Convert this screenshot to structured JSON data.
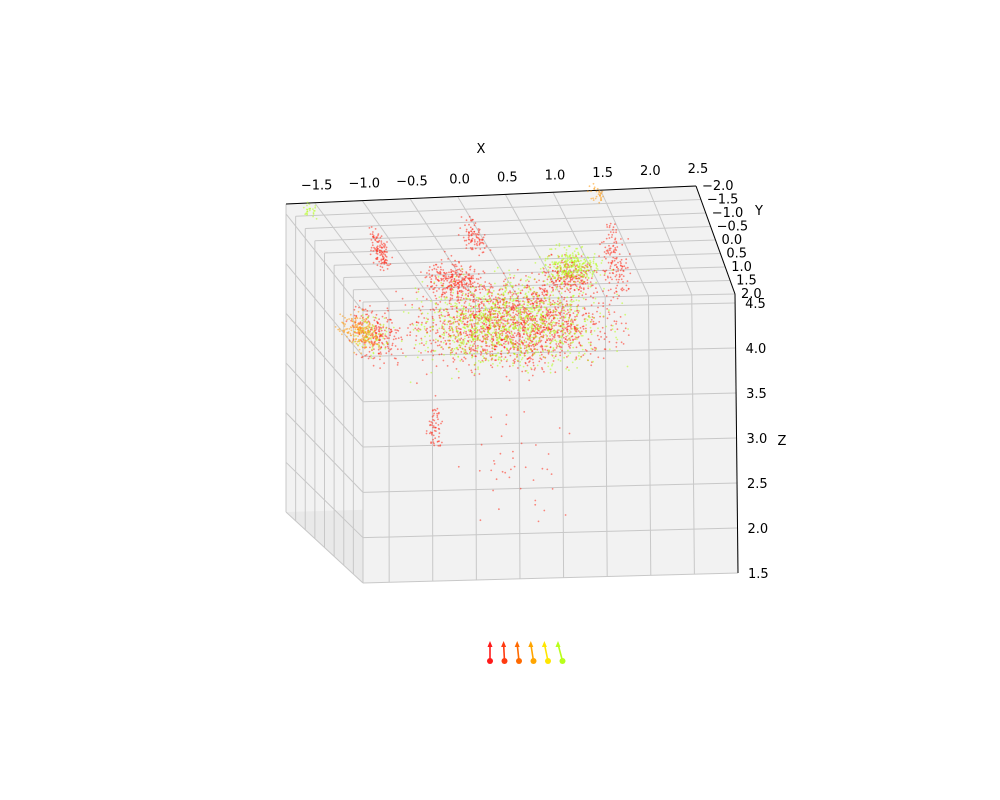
{
  "chart_data": {
    "type": "scatter",
    "projection": "3d",
    "title": "",
    "xlabel": "X",
    "ylabel": "Y",
    "zlabel": "Z",
    "xlim": [
      -1.8,
      2.5
    ],
    "ylim": [
      -2.0,
      2.0
    ],
    "zlim": [
      1.5,
      4.6
    ],
    "x_ticks": [
      "−1.5",
      "−1.0",
      "−0.5",
      "0.0",
      "0.5",
      "1.0",
      "1.5",
      "2.0",
      "2.5"
    ],
    "y_ticks": [
      "−2.0",
      "−1.5",
      "−1.0",
      "−0.5",
      "0.0",
      "0.5",
      "1.0",
      "1.5",
      "2.0"
    ],
    "z_ticks": [
      "1.5",
      "2.0",
      "2.5",
      "3.0",
      "3.5",
      "4.0",
      "4.5"
    ],
    "grid": true,
    "legend": "none",
    "colors": {
      "pane": "#f2f2f2",
      "pane_dark": "#e9e9e9",
      "grid": "#c8c8c8",
      "camera_colors": [
        "#ff1a1a",
        "#ff3a10",
        "#ff6a00",
        "#ffa500",
        "#ffe600",
        "#b8ff1a"
      ]
    },
    "series": [
      {
        "color": "#ff2a1a",
        "clusters": [
          {
            "x": [
              -1.2,
              1.7
            ],
            "y": [
              -0.6,
              0.6
            ],
            "z": [
              3.2,
              4.4
            ],
            "n": 1600
          },
          {
            "x": [
              -1.6,
              -0.9
            ],
            "y": [
              -0.5,
              0.6
            ],
            "z": [
              3.4,
              4.1
            ],
            "n": 220
          },
          {
            "x": [
              -0.8,
              0.1
            ],
            "y": [
              -0.4,
              0.2
            ],
            "z": [
              4.0,
              4.5
            ],
            "n": 260
          },
          {
            "x": [
              0.5,
              1.3
            ],
            "y": [
              -0.4,
              0.2
            ],
            "z": [
              4.0,
              4.5
            ],
            "n": 220
          },
          {
            "x": [
              -1.1,
              -0.9
            ],
            "y": [
              -1.4,
              -0.6
            ],
            "z": [
              4.1,
              4.6
            ],
            "n": 120
          },
          {
            "x": [
              -0.1,
              0.2
            ],
            "y": [
              -1.6,
              -0.8
            ],
            "z": [
              4.2,
              4.6
            ],
            "n": 90
          },
          {
            "x": [
              1.4,
              1.7
            ],
            "y": [
              -1.8,
              -0.5
            ],
            "z": [
              3.6,
              4.6
            ],
            "n": 140
          },
          {
            "x": [
              -0.7,
              -0.5
            ],
            "y": [
              -0.2,
              0.3
            ],
            "z": [
              2.4,
              3.1
            ],
            "n": 60
          },
          {
            "x": [
              -0.6,
              1.2
            ],
            "y": [
              -0.3,
              0.3
            ],
            "z": [
              1.6,
              3.0
            ],
            "n": 40
          }
        ]
      },
      {
        "color": "#b4ff1a",
        "clusters": [
          {
            "x": [
              -1.2,
              1.7
            ],
            "y": [
              -0.6,
              0.6
            ],
            "z": [
              3.2,
              4.4
            ],
            "n": 1100
          },
          {
            "x": [
              0.5,
              1.4
            ],
            "y": [
              -0.4,
              0.2
            ],
            "z": [
              4.1,
              4.6
            ],
            "n": 280
          },
          {
            "x": [
              -1.7,
              -1.5
            ],
            "y": [
              -1.9,
              -1.6
            ],
            "z": [
              4.5,
              4.7
            ],
            "n": 25
          },
          {
            "x": [
              -1.6,
              -1.0
            ],
            "y": [
              -0.4,
              0.5
            ],
            "z": [
              3.5,
              4.0
            ],
            "n": 80
          }
        ]
      },
      {
        "color": "#ff9a10",
        "clusters": [
          {
            "x": [
              -1.7,
              -1.2
            ],
            "y": [
              -0.3,
              0.6
            ],
            "z": [
              3.6,
              4.0
            ],
            "n": 180
          },
          {
            "x": [
              1.3,
              1.6
            ],
            "y": [
              -2.0,
              -1.6
            ],
            "z": [
              4.5,
              4.7
            ],
            "n": 30
          }
        ]
      }
    ],
    "cameras": [
      {
        "index": 0,
        "x": -0.35,
        "color": "#ff1a1a"
      },
      {
        "index": 1,
        "x": -0.2,
        "color": "#ff3a10"
      },
      {
        "index": 2,
        "x": -0.05,
        "color": "#ff6a00"
      },
      {
        "index": 3,
        "x": 0.1,
        "color": "#ffa500"
      },
      {
        "index": 4,
        "x": 0.3,
        "color": "#ffe600"
      },
      {
        "index": 5,
        "x": 0.45,
        "color": "#b8ff1a"
      }
    ]
  }
}
